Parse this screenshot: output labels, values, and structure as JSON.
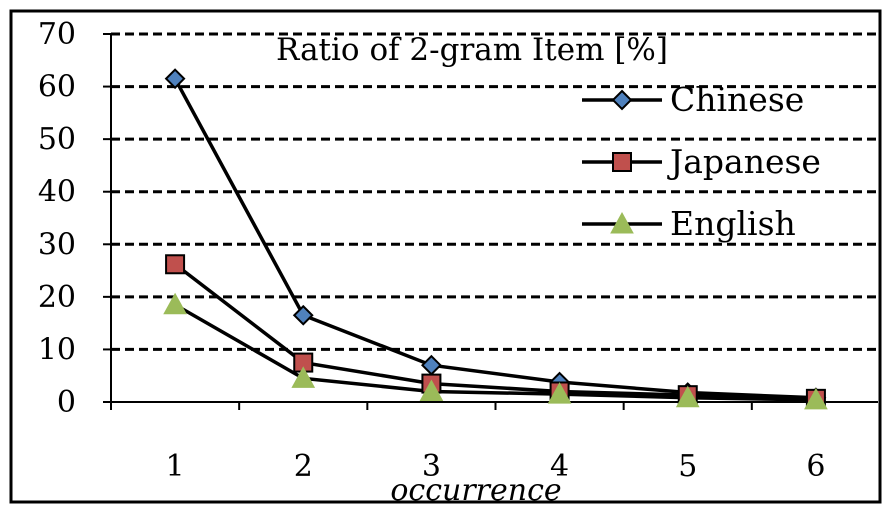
{
  "chart_data": {
    "type": "line",
    "title": "Ratio of 2-gram Item [%]",
    "xlabel": "occurrence",
    "ylabel": "",
    "categories": [
      "1",
      "2",
      "3",
      "4",
      "5",
      "6"
    ],
    "ylim": [
      0,
      70
    ],
    "yticks": [
      "0",
      "10",
      "20",
      "30",
      "40",
      "50",
      "60",
      "70"
    ],
    "grid": true,
    "legend_position": "top-right",
    "series": [
      {
        "name": "Chinese",
        "values": [
          61.5,
          16.5,
          7.0,
          3.8,
          1.8,
          0.8
        ],
        "marker": "diamond",
        "color": "#4F81BD",
        "line_color": "#000000"
      },
      {
        "name": "Japanese",
        "values": [
          26.2,
          7.5,
          3.5,
          2.0,
          1.3,
          0.6
        ],
        "marker": "square",
        "color": "#C0504D",
        "line_color": "#000000"
      },
      {
        "name": "English",
        "values": [
          18.5,
          4.5,
          2.0,
          1.5,
          0.8,
          0.4
        ],
        "marker": "triangle",
        "color": "#9BBB59",
        "line_color": "#000000"
      }
    ]
  }
}
